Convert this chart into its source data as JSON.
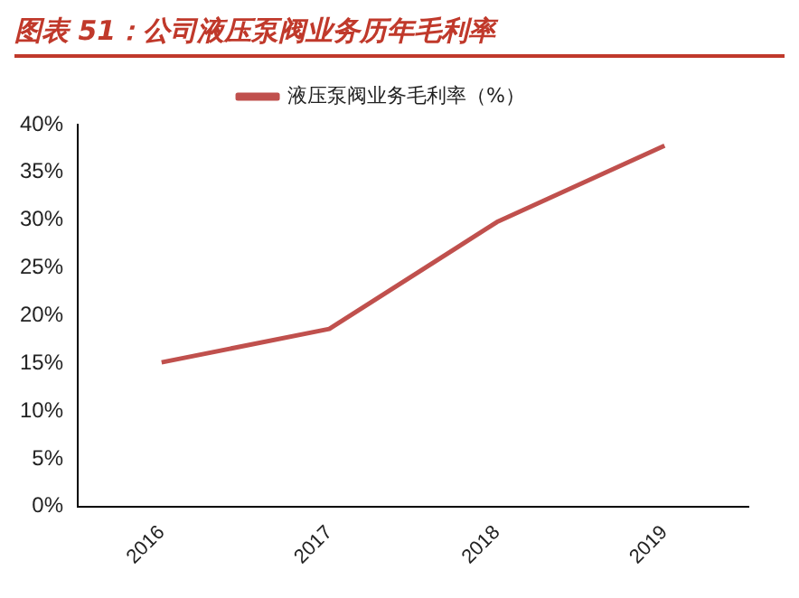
{
  "chart_data": {
    "type": "line",
    "title": "图表 51：公司液压泵阀业务历年毛利率",
    "categories": [
      "2016",
      "2017",
      "2018",
      "2019"
    ],
    "series": [
      {
        "name": "液压泵阀业务毛利率（%）",
        "color": "#c0504d",
        "values": [
          15.1,
          18.6,
          29.8,
          37.8
        ]
      }
    ],
    "ylim": [
      0,
      40
    ],
    "yticks": [
      {
        "value": 0,
        "label": "0%"
      },
      {
        "value": 5,
        "label": "5%"
      },
      {
        "value": 10,
        "label": "10%"
      },
      {
        "value": 15,
        "label": "15%"
      },
      {
        "value": 20,
        "label": "20%"
      },
      {
        "value": 25,
        "label": "25%"
      },
      {
        "value": 30,
        "label": "30%"
      },
      {
        "value": 35,
        "label": "35%"
      },
      {
        "value": 40,
        "label": "40%"
      }
    ],
    "grid": false,
    "legend": "top",
    "marker": "none",
    "line_style": "solid"
  }
}
